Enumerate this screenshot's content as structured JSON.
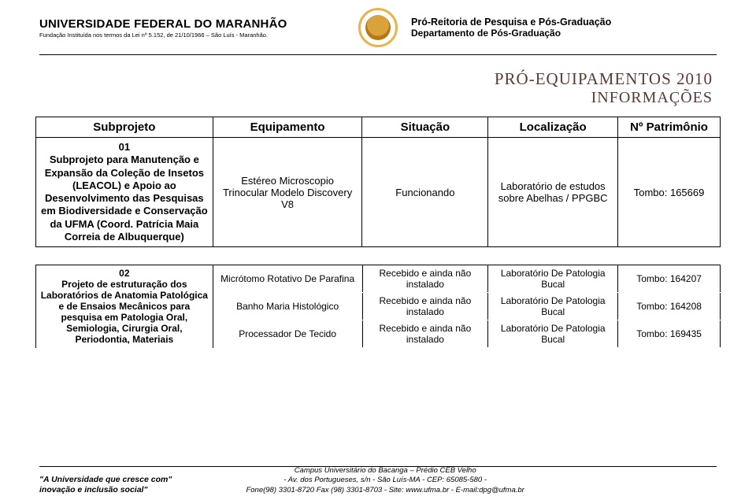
{
  "header": {
    "institution_name": "UNIVERSIDADE FEDERAL DO MARANHÃO",
    "institution_sub": "Fundação Instituída nos termos da Lei nº 5.152, de 21/10/1966 – São Luís - Maranhão.",
    "dept_line1": "Pró-Reitoria de Pesquisa e Pós-Graduação",
    "dept_line2": "Departamento de Pós-Graduação"
  },
  "title": {
    "line1": "PRÓ-EQUIPAMENTOS 2010",
    "line2": "INFORMAÇÕES"
  },
  "table1": {
    "headers": {
      "subprojeto": "Subprojeto",
      "equipamento": "Equipamento",
      "situacao": "Situação",
      "localizacao": "Localização",
      "patrimonio": "Nº Patrimônio"
    },
    "row": {
      "subprojeto": "01\nSubprojeto para Manutenção e Expansão da Coleção de Insetos (LEACOL) e Apoio ao Desenvolvimento das Pesquisas em Biodiversidade e Conservação da UFMA (Coord. Patrícia Maia Correia de Albuquerque)",
      "equipamento": "Estéreo Microscopio Trinocular Modelo Discovery V8",
      "situacao": "Funcionando",
      "localizacao": "Laboratório de estudos sobre Abelhas / PPGBC",
      "patrimonio": "Tombo: 165669"
    }
  },
  "table2": {
    "left": "02\nProjeto de estruturação dos Laboratórios de Anatomia Patológica e de Ensaios Mecânicos para pesquisa em Patologia Oral, Semiologia, Cirurgia Oral, Periodontia, Materiais",
    "rows": [
      {
        "eq": "Micrótomo Rotativo De Parafina",
        "sit": "Recebido e ainda não instalado",
        "loc": "Laboratório De Patologia Bucal",
        "pat": "Tombo: 164207"
      },
      {
        "eq": "Banho Maria Histológico",
        "sit": "Recebido e ainda não instalado",
        "loc": "Laboratório De Patologia Bucal",
        "pat": "Tombo: 164208"
      },
      {
        "eq": "Processador De Tecido",
        "sit": "Recebido e ainda não instalado",
        "loc": "Laboratório De Patologia Bucal",
        "pat": "Tombo: 169435"
      }
    ]
  },
  "footer": {
    "motto_line1": "A Universidade que cresce com",
    "motto_line2": "inovação e inclusão social",
    "campus_line1": "Campus Universitário do Bacanga – Prédio CEB Velho",
    "campus_line2": "- Av. dos Portugueses, s/n - São Luís-MA - CEP: 65085-580 -",
    "campus_line3": "Fone(98) 3301-8720 Fax (98) 3301-8703  -  Site: www.ufma.br  -  E-mail:dpg@ufma.br"
  }
}
